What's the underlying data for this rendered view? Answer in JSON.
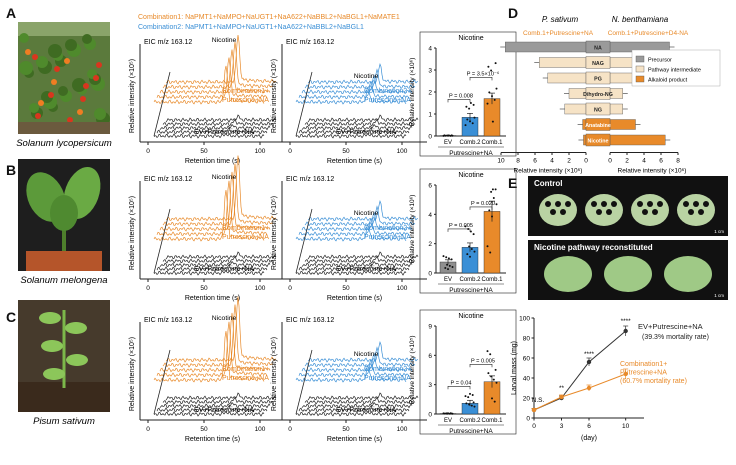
{
  "figure": {
    "panel_letters": [
      "A",
      "B",
      "C",
      "D",
      "E"
    ],
    "combo_header": {
      "combo1": "Combination1: NaPMT1+NaMPO+NaUGT1+NaA622+NaBBL2+NaBGL1+NaMATE1",
      "combo2": "Combination2: NaPMT1+NaMPO+NaUGT1+NaA622+NaBBL2+NaBGL1"
    },
    "colors": {
      "orange": "#e88a2a",
      "blue": "#3a8fd6",
      "dark": "#222222",
      "gray": "#8f8f8f"
    },
    "rows": [
      {
        "species": "Solanum lycopersicum",
        "eic_label": "EIC m/z 163.12",
        "nicotine_label": "Nicotine",
        "combo1_label": "Combination1+\nPutrescine+NA",
        "combo2_label": "Combination2+\nPutrescine+NA",
        "control_label": "EV+Putrescine+NA",
        "y_label": "Relative intensity (×10⁵)",
        "x_label": "Retention time (s)",
        "x_ticks": [
          "0",
          "50",
          "100"
        ],
        "bar": {
          "title": "Nicotine",
          "ylabel": "Relative intensity (×10⁶)",
          "categories": [
            "EV",
            "Comb.2",
            "Comb.1"
          ],
          "values": [
            0.02,
            0.85,
            1.7
          ],
          "errors": [
            0.01,
            0.18,
            0.25
          ],
          "ylim": [
            0,
            4
          ],
          "yticks": [
            "0",
            "1",
            "2",
            "3",
            "4"
          ],
          "pvals": [
            "P = 0.008",
            "P = 3.5×10⁻⁶"
          ],
          "xlabel": "Putrescine+NA"
        }
      },
      {
        "species": "Solanum melongena",
        "eic_label": "EIC m/z 163.12",
        "nicotine_label": "Nicotine",
        "combo1_label": "Combination1+\nPutrescine+NA",
        "combo2_label": "Combination2+\nPutrescine+NA",
        "control_label": "EV+Putrescine+NA",
        "y_label": "Relative intensity (×10⁵)",
        "x_label": "Retention time (s)",
        "x_ticks": [
          "0",
          "50",
          "100"
        ],
        "bar": {
          "title": "Nicotine",
          "ylabel": "Relative intensity (×10⁶)",
          "categories": [
            "EV",
            "Comb.2",
            "Comb.1"
          ],
          "values": [
            0.75,
            1.75,
            4.2
          ],
          "errors": [
            0.15,
            0.3,
            0.7
          ],
          "ylim": [
            0,
            6
          ],
          "yticks": [
            "0",
            "2",
            "4",
            "6"
          ],
          "pvals": [
            "P = 0.005",
            "P = 0.020"
          ],
          "xlabel": "Putrescine+NA"
        }
      },
      {
        "species": "Pisum sativum",
        "eic_label": "EIC m/z 163.12",
        "nicotine_label": "Nicotine",
        "combo1_label": "Combination1+\nPutrescine+NA",
        "combo2_label": "Combination2+\nPutrescine+NA",
        "control_label": "EV+Putrescine+NA",
        "y_label": "Relative intensity (×10⁵)",
        "x_label": "Retention time (s)",
        "x_ticks": [
          "0",
          "50",
          "100"
        ],
        "bar": {
          "title": "Nicotine",
          "ylabel": "Relative intensity (×10⁵)",
          "categories": [
            "EV",
            "Comb.2",
            "Comb.1"
          ],
          "values": [
            0.05,
            1.1,
            3.3
          ],
          "errors": [
            0.02,
            0.3,
            0.6
          ],
          "ylim": [
            0,
            9
          ],
          "yticks": [
            "0",
            "3",
            "6",
            "9"
          ],
          "pvals": [
            "P = 0.04",
            "P = 0.005"
          ],
          "xlabel": "Putrescine+NA"
        }
      }
    ]
  },
  "chart_data": [
    {
      "type": "bar",
      "panel": "D",
      "orientation": "horizontal-mirrored",
      "left_title": "P. sativum",
      "right_title": "N. benthamiana",
      "left_subtitle": "Comb.1+Putrescine+NA",
      "right_subtitle": "Comb.1+Putrescine+D4-NA",
      "categories": [
        "NA",
        "NAG",
        "PG",
        "Dihydro-NG",
        "NG",
        "Anatabine",
        "Nicotine"
      ],
      "left_values": [
        9.5,
        5.5,
        4.5,
        2.0,
        2.5,
        0.4,
        0.3
      ],
      "right_values": [
        7.0,
        3.0,
        3.5,
        1.5,
        1.5,
        3.0,
        6.5
      ],
      "category_type": [
        "precursor",
        "intermediate",
        "intermediate",
        "intermediate",
        "intermediate",
        "alkaloid",
        "alkaloid"
      ],
      "legend": [
        "Precursor",
        "Pathway intermediate",
        "Alkaloid product"
      ],
      "left_ticks": [
        "10",
        "8",
        "6",
        "4",
        "2",
        "0"
      ],
      "right_ticks": [
        "0",
        "2",
        "4",
        "6",
        "8"
      ],
      "left_xlabel": "Relative intensity (×10⁶)",
      "right_xlabel": "Relative intensity (×10⁶)",
      "xlim": [
        0,
        10
      ]
    },
    {
      "type": "line",
      "panel": "E",
      "x": [
        0,
        3,
        6,
        10
      ],
      "xlabel": "(day)",
      "ylabel": "Larval mass (mg)",
      "ylim": [
        0,
        100
      ],
      "yticks": [
        "0",
        "20",
        "40",
        "60",
        "80",
        "100"
      ],
      "xticks": [
        "0",
        "3",
        "6",
        "10"
      ],
      "series": [
        {
          "name": "EV+Putrescine+NA",
          "note": "(39.3% mortality rate)",
          "values": [
            8,
            20,
            56,
            87
          ],
          "errors": [
            1.5,
            2,
            4,
            5
          ],
          "color": "#333333"
        },
        {
          "name": "Combination1+\nPutrescine+NA",
          "note": "(60.7% mortality rate)",
          "values": [
            8,
            21,
            30,
            44
          ],
          "errors": [
            1.5,
            2,
            3,
            5
          ],
          "color": "#e88a2a"
        }
      ],
      "significance": [
        "N.S.",
        "**",
        "****",
        "****"
      ],
      "photo_labels": [
        "Control",
        "Nicotine pathway reconstituted"
      ],
      "scale_label": "1 cm"
    }
  ]
}
